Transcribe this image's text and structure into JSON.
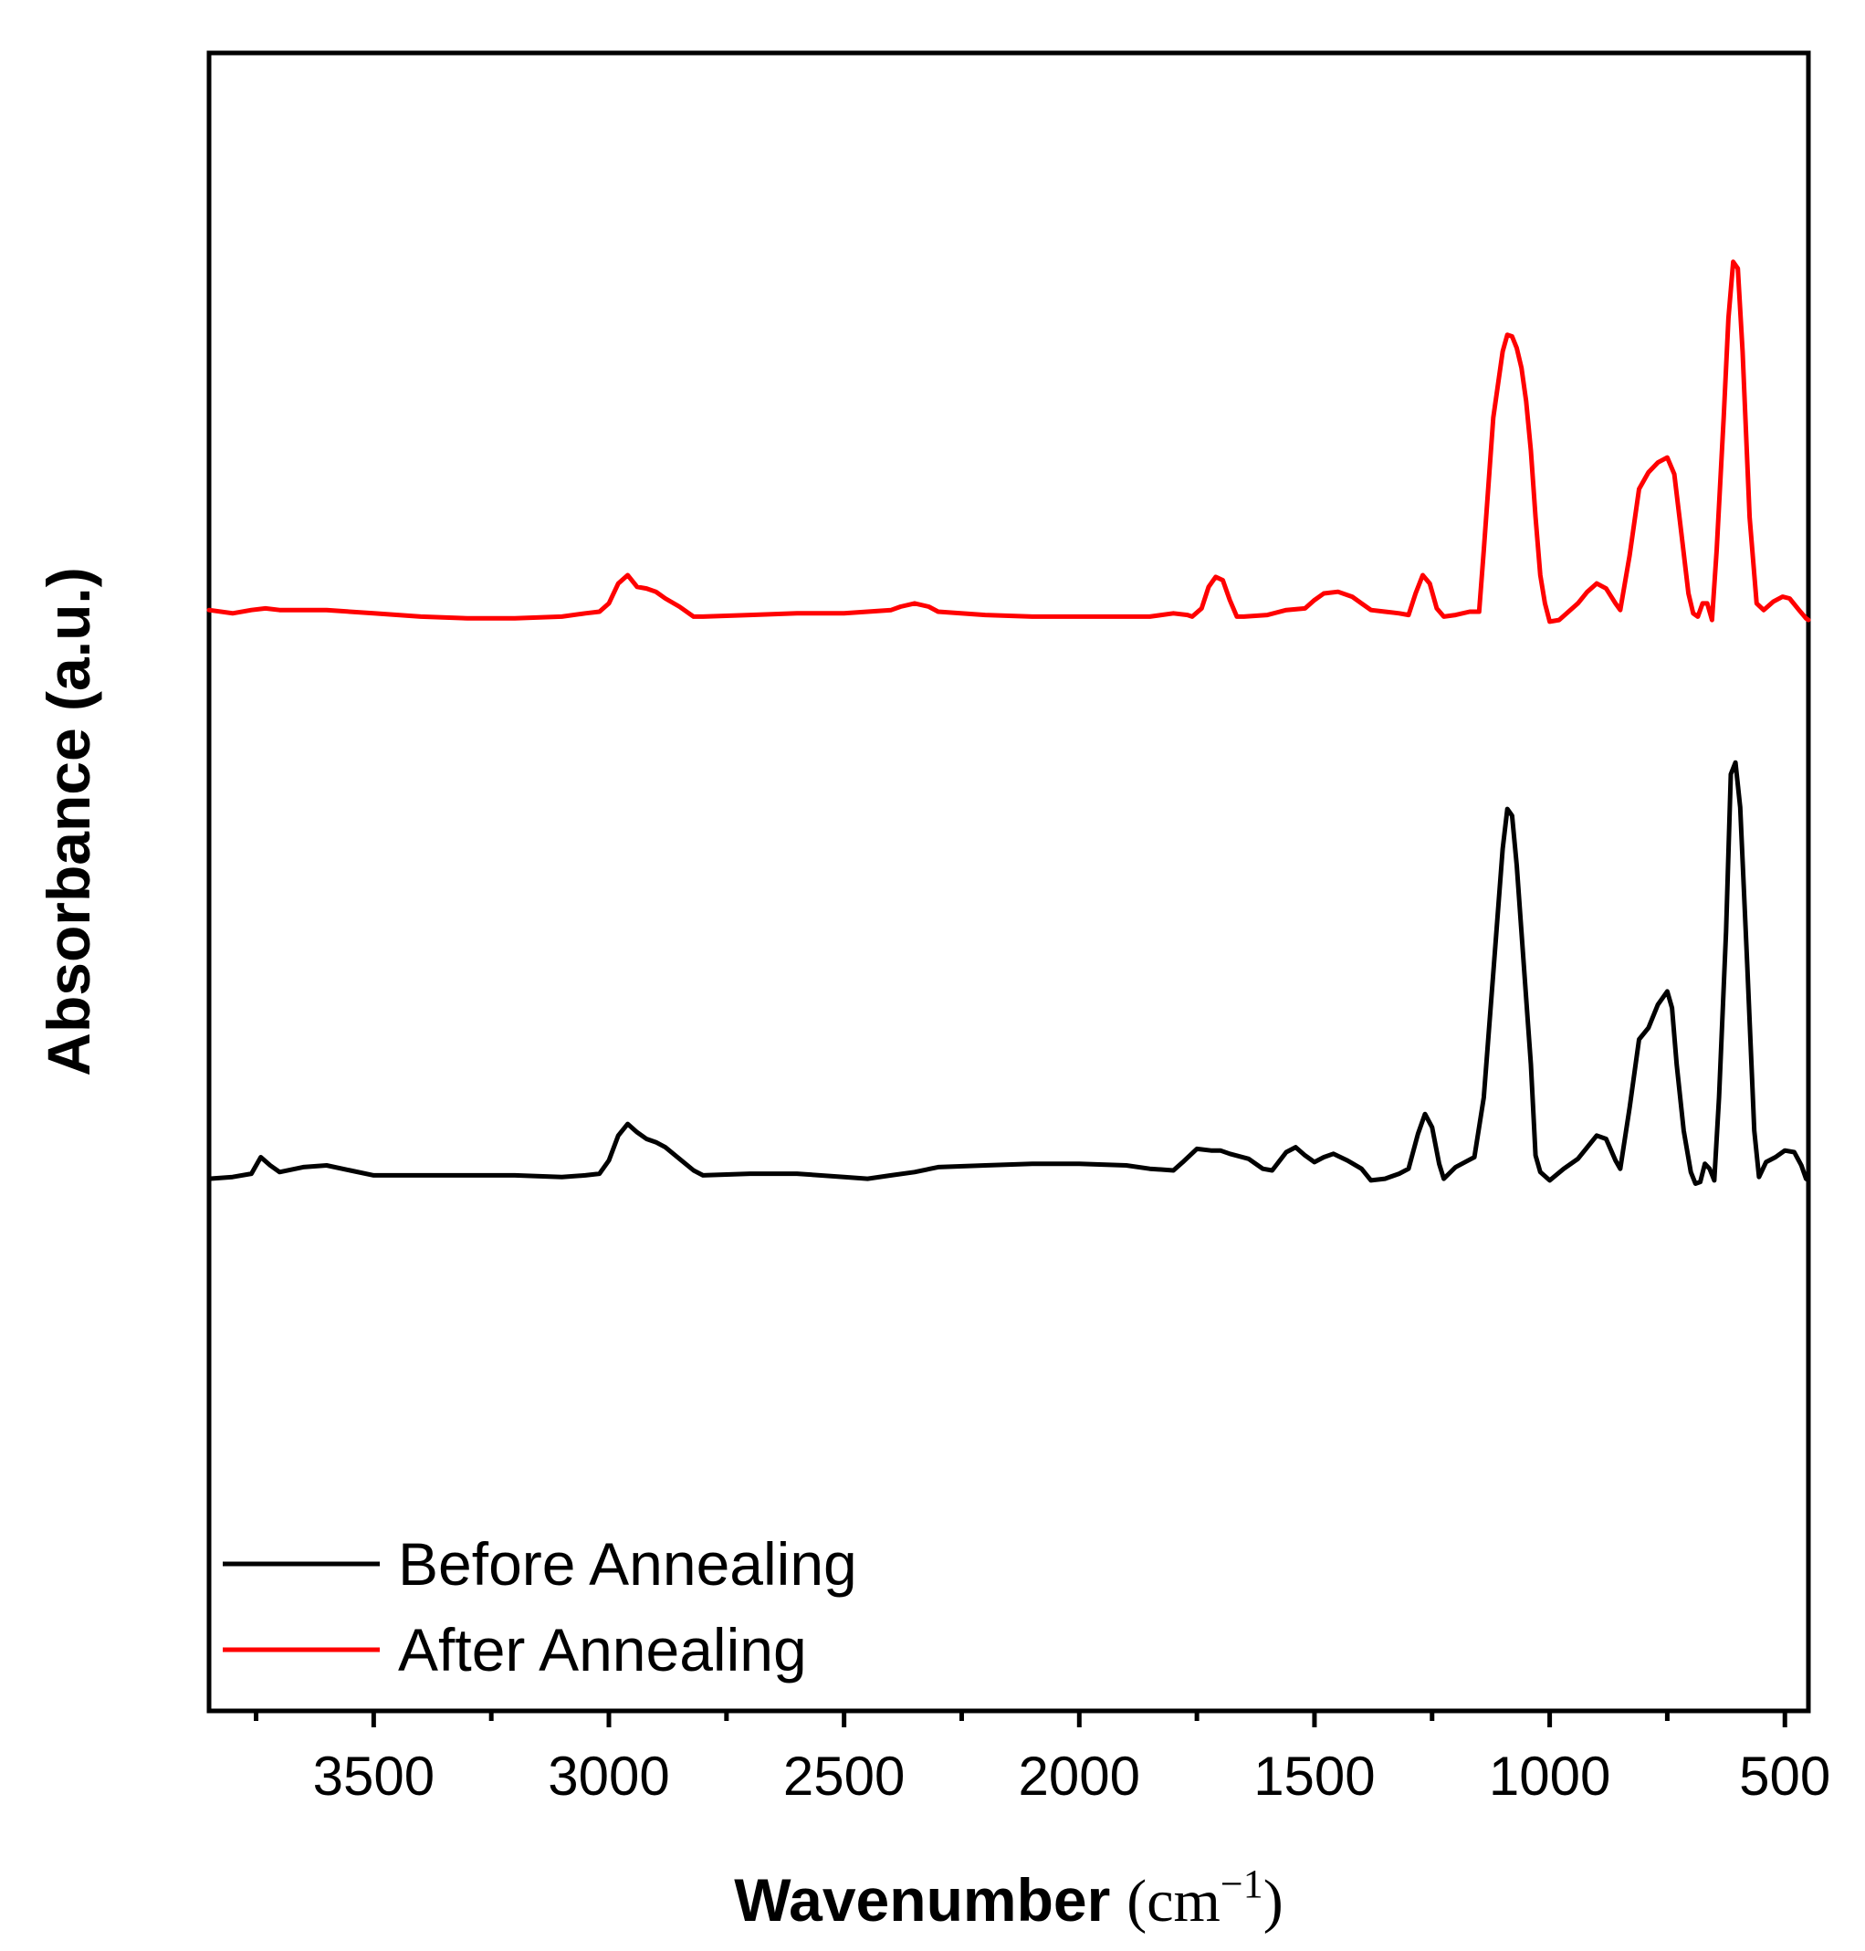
{
  "chart_data": {
    "type": "line",
    "title": "",
    "xlabel": "Wavenumber",
    "xlabel_unit": "(cm",
    "xlabel_unit_exp": "−1",
    "xlabel_unit_close": ")",
    "ylabel": "Absorbance (a.u.)",
    "xlim": [
      3850,
      450
    ],
    "x_reversed": true,
    "ylim": [
      0,
      1
    ],
    "grid": false,
    "x_ticks": [
      3500,
      3000,
      2500,
      2000,
      1500,
      1000,
      500
    ],
    "x_tick_labels": [
      "3500",
      "3000",
      "2500",
      "2000",
      "1500",
      "1000",
      "500"
    ],
    "x_minor_ticks": [
      3750,
      3250,
      2750,
      2250,
      1750,
      1250,
      750
    ],
    "legend_position": "bottom-left",
    "series": [
      {
        "name": "Before Annealing",
        "color": "#000000",
        "points": [
          [
            3850,
            0.321
          ],
          [
            3800,
            0.322
          ],
          [
            3760,
            0.324
          ],
          [
            3740,
            0.334
          ],
          [
            3720,
            0.329
          ],
          [
            3700,
            0.325
          ],
          [
            3650,
            0.328
          ],
          [
            3600,
            0.329
          ],
          [
            3550,
            0.326
          ],
          [
            3500,
            0.323
          ],
          [
            3400,
            0.323
          ],
          [
            3300,
            0.323
          ],
          [
            3200,
            0.323
          ],
          [
            3100,
            0.322
          ],
          [
            3050,
            0.323
          ],
          [
            3020,
            0.324
          ],
          [
            3000,
            0.332
          ],
          [
            2980,
            0.347
          ],
          [
            2960,
            0.354
          ],
          [
            2940,
            0.349
          ],
          [
            2920,
            0.345
          ],
          [
            2900,
            0.343
          ],
          [
            2880,
            0.34
          ],
          [
            2850,
            0.333
          ],
          [
            2820,
            0.326
          ],
          [
            2800,
            0.323
          ],
          [
            2700,
            0.324
          ],
          [
            2600,
            0.324
          ],
          [
            2500,
            0.322
          ],
          [
            2450,
            0.321
          ],
          [
            2400,
            0.323
          ],
          [
            2350,
            0.325
          ],
          [
            2300,
            0.328
          ],
          [
            2200,
            0.329
          ],
          [
            2100,
            0.33
          ],
          [
            2000,
            0.33
          ],
          [
            1900,
            0.329
          ],
          [
            1850,
            0.327
          ],
          [
            1800,
            0.326
          ],
          [
            1780,
            0.331
          ],
          [
            1750,
            0.339
          ],
          [
            1720,
            0.338
          ],
          [
            1700,
            0.338
          ],
          [
            1680,
            0.336
          ],
          [
            1640,
            0.333
          ],
          [
            1610,
            0.327
          ],
          [
            1590,
            0.326
          ],
          [
            1560,
            0.337
          ],
          [
            1540,
            0.34
          ],
          [
            1520,
            0.335
          ],
          [
            1500,
            0.331
          ],
          [
            1480,
            0.334
          ],
          [
            1460,
            0.336
          ],
          [
            1430,
            0.332
          ],
          [
            1400,
            0.327
          ],
          [
            1380,
            0.32
          ],
          [
            1350,
            0.321
          ],
          [
            1320,
            0.324
          ],
          [
            1300,
            0.327
          ],
          [
            1280,
            0.348
          ],
          [
            1265,
            0.36
          ],
          [
            1250,
            0.352
          ],
          [
            1235,
            0.33
          ],
          [
            1225,
            0.321
          ],
          [
            1200,
            0.328
          ],
          [
            1180,
            0.331
          ],
          [
            1160,
            0.334
          ],
          [
            1140,
            0.37
          ],
          [
            1120,
            0.445
          ],
          [
            1100,
            0.52
          ],
          [
            1090,
            0.544
          ],
          [
            1080,
            0.54
          ],
          [
            1070,
            0.51
          ],
          [
            1050,
            0.43
          ],
          [
            1040,
            0.39
          ],
          [
            1030,
            0.335
          ],
          [
            1020,
            0.325
          ],
          [
            1000,
            0.32
          ],
          [
            970,
            0.327
          ],
          [
            940,
            0.333
          ],
          [
            920,
            0.34
          ],
          [
            900,
            0.347
          ],
          [
            880,
            0.345
          ],
          [
            860,
            0.332
          ],
          [
            850,
            0.327
          ],
          [
            830,
            0.364
          ],
          [
            810,
            0.405
          ],
          [
            790,
            0.412
          ],
          [
            770,
            0.426
          ],
          [
            750,
            0.434
          ],
          [
            740,
            0.424
          ],
          [
            730,
            0.39
          ],
          [
            715,
            0.35
          ],
          [
            700,
            0.325
          ],
          [
            690,
            0.318
          ],
          [
            680,
            0.319
          ],
          [
            670,
            0.33
          ],
          [
            660,
            0.327
          ],
          [
            650,
            0.32
          ],
          [
            640,
            0.37
          ],
          [
            625,
            0.47
          ],
          [
            615,
            0.565
          ],
          [
            605,
            0.572
          ],
          [
            595,
            0.545
          ],
          [
            580,
            0.45
          ],
          [
            565,
            0.35
          ],
          [
            555,
            0.322
          ],
          [
            540,
            0.331
          ],
          [
            520,
            0.334
          ],
          [
            500,
            0.338
          ],
          [
            480,
            0.337
          ],
          [
            465,
            0.329
          ],
          [
            455,
            0.321
          ],
          [
            450,
            0.32
          ]
        ]
      },
      {
        "name": "After Annealing",
        "color": "#ff0000",
        "points": [
          [
            3850,
            0.664
          ],
          [
            3800,
            0.662
          ],
          [
            3760,
            0.664
          ],
          [
            3730,
            0.665
          ],
          [
            3700,
            0.664
          ],
          [
            3600,
            0.664
          ],
          [
            3500,
            0.662
          ],
          [
            3400,
            0.66
          ],
          [
            3300,
            0.659
          ],
          [
            3200,
            0.659
          ],
          [
            3100,
            0.66
          ],
          [
            3050,
            0.662
          ],
          [
            3020,
            0.663
          ],
          [
            3000,
            0.668
          ],
          [
            2980,
            0.68
          ],
          [
            2960,
            0.685
          ],
          [
            2940,
            0.678
          ],
          [
            2920,
            0.677
          ],
          [
            2900,
            0.675
          ],
          [
            2880,
            0.671
          ],
          [
            2850,
            0.666
          ],
          [
            2820,
            0.66
          ],
          [
            2800,
            0.66
          ],
          [
            2700,
            0.661
          ],
          [
            2600,
            0.662
          ],
          [
            2500,
            0.662
          ],
          [
            2400,
            0.664
          ],
          [
            2380,
            0.666
          ],
          [
            2350,
            0.668
          ],
          [
            2320,
            0.666
          ],
          [
            2300,
            0.663
          ],
          [
            2200,
            0.661
          ],
          [
            2100,
            0.66
          ],
          [
            2000,
            0.66
          ],
          [
            1900,
            0.66
          ],
          [
            1850,
            0.66
          ],
          [
            1800,
            0.662
          ],
          [
            1770,
            0.661
          ],
          [
            1760,
            0.66
          ],
          [
            1740,
            0.665
          ],
          [
            1725,
            0.678
          ],
          [
            1710,
            0.684
          ],
          [
            1695,
            0.682
          ],
          [
            1680,
            0.67
          ],
          [
            1665,
            0.66
          ],
          [
            1650,
            0.66
          ],
          [
            1600,
            0.661
          ],
          [
            1560,
            0.664
          ],
          [
            1520,
            0.665
          ],
          [
            1500,
            0.67
          ],
          [
            1480,
            0.674
          ],
          [
            1450,
            0.675
          ],
          [
            1420,
            0.672
          ],
          [
            1400,
            0.668
          ],
          [
            1380,
            0.664
          ],
          [
            1350,
            0.663
          ],
          [
            1320,
            0.662
          ],
          [
            1300,
            0.661
          ],
          [
            1285,
            0.674
          ],
          [
            1270,
            0.685
          ],
          [
            1255,
            0.68
          ],
          [
            1240,
            0.665
          ],
          [
            1225,
            0.66
          ],
          [
            1200,
            0.661
          ],
          [
            1170,
            0.663
          ],
          [
            1150,
            0.663
          ],
          [
            1140,
            0.7
          ],
          [
            1120,
            0.78
          ],
          [
            1100,
            0.82
          ],
          [
            1090,
            0.83
          ],
          [
            1080,
            0.829
          ],
          [
            1070,
            0.822
          ],
          [
            1060,
            0.81
          ],
          [
            1050,
            0.79
          ],
          [
            1040,
            0.76
          ],
          [
            1030,
            0.72
          ],
          [
            1020,
            0.685
          ],
          [
            1010,
            0.668
          ],
          [
            1000,
            0.657
          ],
          [
            980,
            0.658
          ],
          [
            960,
            0.663
          ],
          [
            940,
            0.668
          ],
          [
            920,
            0.675
          ],
          [
            900,
            0.68
          ],
          [
            880,
            0.677
          ],
          [
            860,
            0.668
          ],
          [
            850,
            0.664
          ],
          [
            830,
            0.697
          ],
          [
            810,
            0.737
          ],
          [
            790,
            0.747
          ],
          [
            770,
            0.753
          ],
          [
            750,
            0.756
          ],
          [
            735,
            0.746
          ],
          [
            720,
            0.71
          ],
          [
            705,
            0.674
          ],
          [
            695,
            0.662
          ],
          [
            685,
            0.66
          ],
          [
            675,
            0.668
          ],
          [
            665,
            0.668
          ],
          [
            655,
            0.658
          ],
          [
            645,
            0.7
          ],
          [
            630,
            0.78
          ],
          [
            620,
            0.84
          ],
          [
            610,
            0.874
          ],
          [
            600,
            0.87
          ],
          [
            590,
            0.82
          ],
          [
            575,
            0.72
          ],
          [
            560,
            0.668
          ],
          [
            545,
            0.664
          ],
          [
            525,
            0.669
          ],
          [
            505,
            0.672
          ],
          [
            490,
            0.671
          ],
          [
            470,
            0.664
          ],
          [
            455,
            0.659
          ],
          [
            450,
            0.658
          ]
        ]
      }
    ]
  }
}
